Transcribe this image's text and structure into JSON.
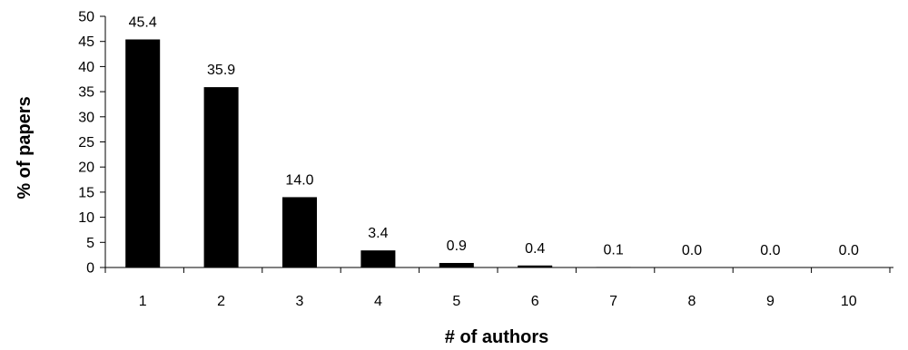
{
  "chart_data": {
    "type": "bar",
    "categories": [
      "1",
      "2",
      "3",
      "4",
      "5",
      "6",
      "7",
      "8",
      "9",
      "10"
    ],
    "values": [
      45.4,
      35.9,
      14.0,
      3.4,
      0.9,
      0.4,
      0.1,
      0.0,
      0.0,
      0.0
    ],
    "data_labels": [
      "45.4",
      "35.9",
      "14.0",
      "3.4",
      "0.9",
      "0.4",
      "0.1",
      "0.0",
      "0.0",
      "0.0"
    ],
    "xlabel": "# of authors",
    "ylabel": "% of papers",
    "ylim": [
      0,
      50
    ],
    "yticks": [
      0,
      5,
      10,
      15,
      20,
      25,
      30,
      35,
      40,
      45,
      50
    ],
    "grid": false,
    "legend": "none",
    "bar_color": "#000000"
  }
}
